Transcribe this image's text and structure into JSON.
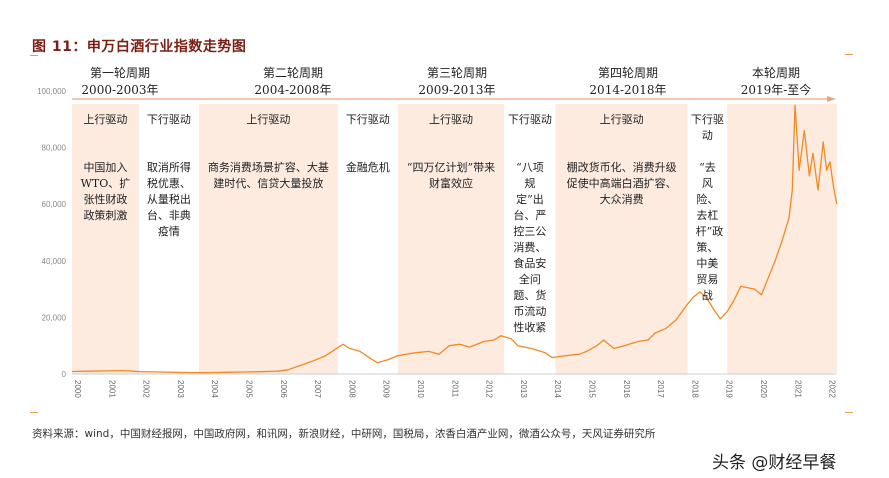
{
  "title": "图 11：申万白酒行业指数走势图",
  "source": "资料来源：wind，中国财经报网，中国政府网，和讯网，新浪财经，中研网，国税局，浓香白酒产业网，微酒公众号，天风证券研究所",
  "watermark": "头条 @财经早餐",
  "colors": {
    "line": "#f08a24",
    "band": "#fdebe0",
    "axis_arrow": "#f0a080",
    "title": "#7a1f14"
  },
  "cycles": [
    {
      "name": "第一轮周期",
      "years": "2000-2003年"
    },
    {
      "name": "第二轮周期",
      "years": "2004-2008年"
    },
    {
      "name": "第三轮周期",
      "years": "2009-2013年"
    },
    {
      "name": "第四轮周期",
      "years": "2014-2018年"
    },
    {
      "name": "本轮周期",
      "years": "2019年-至今"
    }
  ],
  "bands": [
    {
      "from": 2000,
      "to": 2001.95,
      "shaded": true,
      "label": "上行驱动",
      "text": "中国加入WTO、扩张性财政政策刺激"
    },
    {
      "from": 2001.95,
      "to": 2003.7,
      "shaded": false,
      "label": "下行驱动",
      "text": "取消所得税优惠、从量税出台、非典疫情"
    },
    {
      "from": 2003.7,
      "to": 2007.75,
      "shaded": true,
      "label": "上行驱动",
      "text": "商务消费场景扩容、大基建时代、信贷大量投放"
    },
    {
      "from": 2007.75,
      "to": 2009.5,
      "shaded": false,
      "label": "下行驱动",
      "text": "金融危机"
    },
    {
      "from": 2009.5,
      "to": 2012.6,
      "shaded": true,
      "label": "上行驱动",
      "text": "“四万亿计划”带来财富效应"
    },
    {
      "from": 2012.6,
      "to": 2014.1,
      "shaded": false,
      "label": "下行驱动",
      "text": "“八项规定”出台、严控三公消费、食品安全问题、货币流动性收紧"
    },
    {
      "from": 2014.1,
      "to": 2017.95,
      "shaded": true,
      "label": "上行驱动",
      "text": "棚改货币化、消费升级促使中高端白酒扩容、大众消费"
    },
    {
      "from": 2017.95,
      "to": 2019.1,
      "shaded": false,
      "label": "下行驱动",
      "text": "“去风险、去杠杆”政策、中美贸易战"
    },
    {
      "from": 2019.1,
      "to": 2022.3,
      "shaded": true,
      "label": "",
      "text": ""
    }
  ],
  "chart_data": {
    "type": "line",
    "title": "申万白酒行业指数走势图",
    "xlim": [
      2000,
      2022.3
    ],
    "ylim": [
      0,
      100000
    ],
    "x_ticks": [
      "2000",
      "2001",
      "2002",
      "2003",
      "2004",
      "2005",
      "2006",
      "2007",
      "2008",
      "2009",
      "2010",
      "2011",
      "2012",
      "2013",
      "2014",
      "2015",
      "2016",
      "2017",
      "2018",
      "2019",
      "2020",
      "2021",
      "2022"
    ],
    "y_ticks": [
      "0",
      "20,000",
      "40,000",
      "60,000",
      "80,000",
      "100,000"
    ],
    "y_tick_values": [
      0,
      20000,
      40000,
      60000,
      80000,
      100000
    ],
    "grid": false,
    "series": [
      {
        "x": [
          2000,
          2000.5,
          2001,
          2001.5,
          2002,
          2002.5,
          2003,
          2003.5,
          2004,
          2004.5,
          2005,
          2005.5,
          2006,
          2006.3,
          2006.6,
          2007,
          2007.4,
          2007.9,
          2008.1,
          2008.4,
          2008.7,
          2008.9,
          2009.2,
          2009.5,
          2010,
          2010.4,
          2010.7,
          2011,
          2011.3,
          2011.6,
          2012,
          2012.3,
          2012.5,
          2012.8,
          2013,
          2013.4,
          2013.8,
          2014,
          2014.4,
          2014.8,
          2015,
          2015.3,
          2015.5,
          2015.8,
          2016.1,
          2016.5,
          2016.8,
          2017,
          2017.3,
          2017.6,
          2017.9,
          2018.1,
          2018.3,
          2018.5,
          2018.7,
          2018.9,
          2019.1,
          2019.3,
          2019.5,
          2019.7,
          2019.9,
          2020.1,
          2020.3,
          2020.5,
          2020.7,
          2020.9,
          2021.0,
          2021.08,
          2021.2,
          2021.35,
          2021.5,
          2021.6,
          2021.75,
          2021.9,
          2022.0,
          2022.1,
          2022.2,
          2022.3
        ],
        "y": [
          900,
          1000,
          1100,
          1200,
          800,
          700,
          600,
          500,
          500,
          600,
          700,
          800,
          1000,
          1500,
          2800,
          4500,
          6500,
          10500,
          9000,
          8000,
          5500,
          4000,
          5000,
          6500,
          7500,
          8000,
          7000,
          10000,
          10500,
          9500,
          11500,
          12000,
          13500,
          12500,
          10000,
          9000,
          7500,
          5800,
          6500,
          7000,
          8000,
          10000,
          12000,
          9000,
          10000,
          11500,
          12000,
          14500,
          16000,
          19000,
          24000,
          27000,
          29000,
          27000,
          23000,
          19500,
          22000,
          26000,
          31000,
          30500,
          30000,
          28000,
          34000,
          40000,
          47000,
          55000,
          65000,
          95000,
          72000,
          86000,
          70000,
          78000,
          65000,
          82000,
          72000,
          75000,
          66000,
          60000
        ]
      }
    ]
  }
}
